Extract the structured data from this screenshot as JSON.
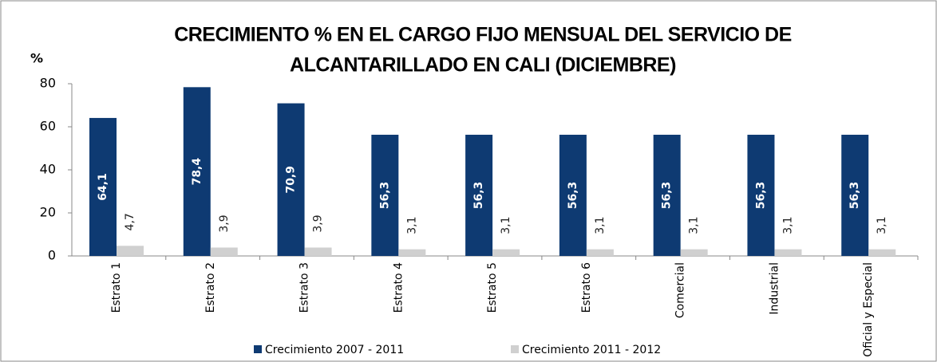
{
  "chart_data": {
    "type": "bar",
    "title": [
      "CRECIMIENTO % EN EL CARGO FIJO MENSUAL DEL SERVICIO DE",
      "ALCANTARILLADO EN CALI (DICIEMBRE)"
    ],
    "y_axis_label": "%",
    "categories": [
      "Estrato 1",
      "Estrato 2",
      "Estrato 3",
      "Estrato 4",
      "Estrato 5",
      "Estrato 6",
      "Comercial",
      "Industrial",
      "Oficial y Especial"
    ],
    "series": [
      {
        "name": "Crecimiento 2007 - 2011",
        "color": "#0e3a72",
        "values": [
          64.1,
          78.4,
          70.9,
          56.3,
          56.3,
          56.3,
          56.3,
          56.3,
          56.3
        ],
        "value_labels": [
          "64,1",
          "78,4",
          "70,9",
          "56,3",
          "56,3",
          "56,3",
          "56,3",
          "56,3",
          "56,3"
        ]
      },
      {
        "name": "Crecimiento 2011 - 2012",
        "color": "#d0d0d0",
        "values": [
          4.7,
          3.9,
          3.9,
          3.1,
          3.1,
          3.1,
          3.1,
          3.1,
          3.1
        ],
        "value_labels": [
          "4,7",
          "3,9",
          "3,9",
          "3,1",
          "3,1",
          "3,1",
          "3,1",
          "3,1",
          "3,1"
        ]
      }
    ],
    "ylim": [
      0,
      80
    ],
    "yticks": [
      0,
      20,
      40,
      60,
      80
    ],
    "grid": false,
    "legend": "bottom"
  }
}
